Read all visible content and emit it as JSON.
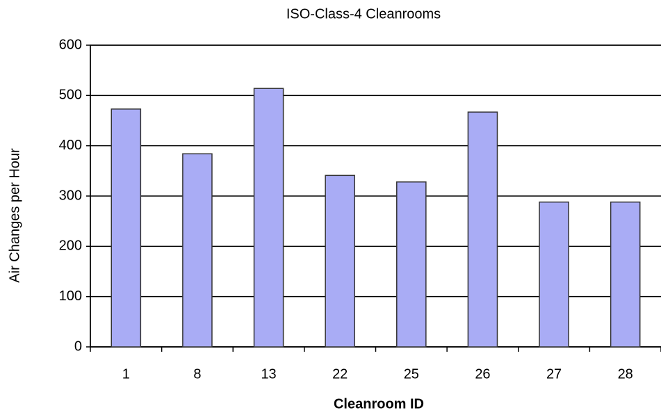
{
  "chart_data": {
    "type": "bar",
    "title": "ISO-Class-4 Cleanrooms",
    "x_label": "Cleanroom ID",
    "y_label": "Air Changes per Hour",
    "categories": [
      "1",
      "8",
      "13",
      "22",
      "25",
      "26",
      "27",
      "28"
    ],
    "values": [
      473,
      384,
      514,
      341,
      328,
      467,
      288,
      288
    ],
    "color": "#a9acf5",
    "edge_color": "#333333",
    "ylim": [
      0,
      600
    ],
    "yticks": [
      0,
      100,
      200,
      300,
      400,
      500,
      600
    ],
    "grid": true
  }
}
